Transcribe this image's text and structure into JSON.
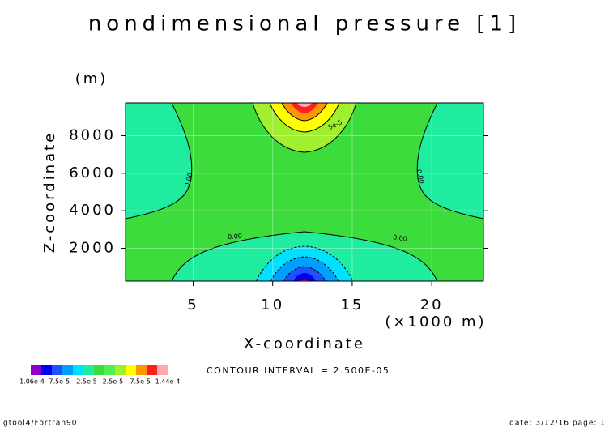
{
  "chart_data": {
    "type": "contour",
    "title": "nondimensional pressure [1]",
    "x_label": "X-coordinate",
    "y_label": "Z-coordinate",
    "x_unit": "(×1000 m)",
    "y_unit": "(m)",
    "xlim": [
      0.75,
      23.25
    ],
    "ylim": [
      250,
      9750
    ],
    "xticks": [
      5,
      10,
      15,
      20
    ],
    "yticks": [
      2000,
      4000,
      6000,
      8000
    ],
    "grid": true,
    "colorbar": {
      "colors": [
        "#8c00c8",
        "#0000f0",
        "#1e50ff",
        "#00a0ff",
        "#00e1ff",
        "#20eca0",
        "#3cdc3c",
        "#50f050",
        "#a0f030",
        "#ffff00",
        "#ff9600",
        "#ff1e1e",
        "#ffaaaa"
      ],
      "labels": [
        "-1.06e-4",
        "-7.5e-5",
        "-2.5e-5",
        "2.5e-5",
        "7.5e-5",
        "1.44e-4"
      ]
    },
    "contour_labels": [
      "0.00",
      "0.00",
      "0.00",
      "0.00",
      "5e-5"
    ],
    "contour_interval": "CONTOUR INTERVAL = 2.500E-05",
    "footer_left": "gtool4/Fortran90",
    "footer_right": "date: 3/12/16 page: 1"
  }
}
